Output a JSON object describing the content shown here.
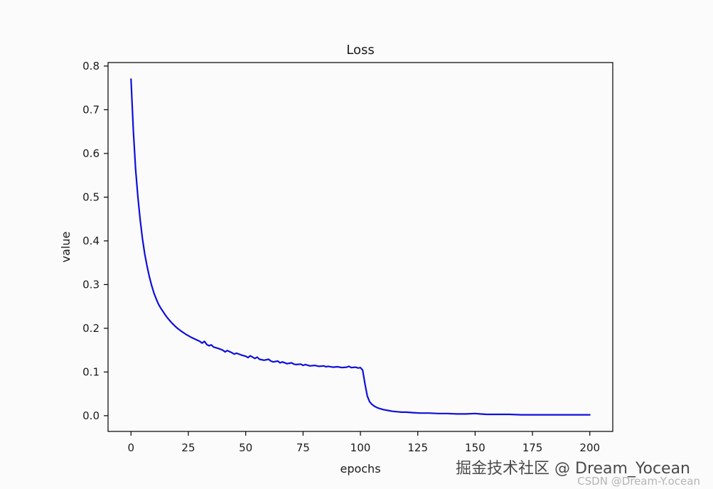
{
  "watermark": {
    "line1": "掘金技术社区 @ Dream_Yocean",
    "line2": "CSDN @Dream-Y.ocean"
  },
  "chart_data": {
    "type": "line",
    "title": "Loss",
    "xlabel": "epochs",
    "ylabel": "value",
    "xlim": [
      -10,
      210
    ],
    "ylim": [
      -0.036,
      0.808
    ],
    "xticks": [
      0,
      25,
      50,
      75,
      100,
      125,
      150,
      175,
      200
    ],
    "xtick_labels": [
      "0",
      "25",
      "50",
      "75",
      "100",
      "125",
      "150",
      "175",
      "200"
    ],
    "yticks": [
      0.0,
      0.1,
      0.2,
      0.3,
      0.4,
      0.5,
      0.6,
      0.7,
      0.8
    ],
    "ytick_labels": [
      "0.0",
      "0.1",
      "0.2",
      "0.3",
      "0.4",
      "0.5",
      "0.6",
      "0.7",
      "0.8"
    ],
    "grid": false,
    "legend": "none",
    "axis_color": "#000000",
    "background": "#fbfbfb",
    "series": [
      {
        "name": "loss",
        "color": "#0f0fdd",
        "points": [
          [
            0,
            0.77
          ],
          [
            1,
            0.655
          ],
          [
            2,
            0.565
          ],
          [
            3,
            0.5
          ],
          [
            4,
            0.448
          ],
          [
            5,
            0.405
          ],
          [
            6,
            0.37
          ],
          [
            7,
            0.342
          ],
          [
            8,
            0.318
          ],
          [
            9,
            0.298
          ],
          [
            10,
            0.281
          ],
          [
            11,
            0.267
          ],
          [
            12,
            0.255
          ],
          [
            13,
            0.246
          ],
          [
            14,
            0.238
          ],
          [
            15,
            0.23
          ],
          [
            16,
            0.223
          ],
          [
            17,
            0.217
          ],
          [
            18,
            0.211
          ],
          [
            19,
            0.206
          ],
          [
            20,
            0.201
          ],
          [
            22,
            0.193
          ],
          [
            24,
            0.186
          ],
          [
            25,
            0.183
          ],
          [
            26,
            0.18
          ],
          [
            28,
            0.175
          ],
          [
            30,
            0.17
          ],
          [
            31,
            0.166
          ],
          [
            32,
            0.17
          ],
          [
            33,
            0.163
          ],
          [
            34,
            0.16
          ],
          [
            35,
            0.162
          ],
          [
            36,
            0.157
          ],
          [
            38,
            0.154
          ],
          [
            40,
            0.15
          ],
          [
            41,
            0.146
          ],
          [
            42,
            0.149
          ],
          [
            44,
            0.144
          ],
          [
            45,
            0.141
          ],
          [
            46,
            0.143
          ],
          [
            48,
            0.139
          ],
          [
            50,
            0.136
          ],
          [
            51,
            0.133
          ],
          [
            52,
            0.137
          ],
          [
            54,
            0.131
          ],
          [
            55,
            0.134
          ],
          [
            56,
            0.129
          ],
          [
            58,
            0.127
          ],
          [
            60,
            0.129
          ],
          [
            61,
            0.125
          ],
          [
            62,
            0.123
          ],
          [
            64,
            0.125
          ],
          [
            65,
            0.121
          ],
          [
            66,
            0.123
          ],
          [
            68,
            0.119
          ],
          [
            70,
            0.121
          ],
          [
            71,
            0.118
          ],
          [
            72,
            0.117
          ],
          [
            74,
            0.118
          ],
          [
            75,
            0.115
          ],
          [
            76,
            0.117
          ],
          [
            78,
            0.114
          ],
          [
            80,
            0.115
          ],
          [
            82,
            0.113
          ],
          [
            84,
            0.114
          ],
          [
            85,
            0.112
          ],
          [
            86,
            0.113
          ],
          [
            88,
            0.111
          ],
          [
            90,
            0.112
          ],
          [
            92,
            0.11
          ],
          [
            94,
            0.111
          ],
          [
            95,
            0.113
          ],
          [
            96,
            0.11
          ],
          [
            98,
            0.111
          ],
          [
            99,
            0.109
          ],
          [
            100,
            0.11
          ],
          [
            101,
            0.104
          ],
          [
            102,
            0.072
          ],
          [
            103,
            0.045
          ],
          [
            104,
            0.032
          ],
          [
            105,
            0.026
          ],
          [
            106,
            0.022
          ],
          [
            107,
            0.019
          ],
          [
            108,
            0.017
          ],
          [
            110,
            0.014
          ],
          [
            112,
            0.012
          ],
          [
            114,
            0.01
          ],
          [
            116,
            0.009
          ],
          [
            118,
            0.008
          ],
          [
            120,
            0.008
          ],
          [
            123,
            0.007
          ],
          [
            126,
            0.006
          ],
          [
            130,
            0.006
          ],
          [
            134,
            0.005
          ],
          [
            138,
            0.005
          ],
          [
            142,
            0.004
          ],
          [
            146,
            0.004
          ],
          [
            150,
            0.005
          ],
          [
            152,
            0.004
          ],
          [
            155,
            0.003
          ],
          [
            160,
            0.003
          ],
          [
            165,
            0.003
          ],
          [
            170,
            0.002
          ],
          [
            175,
            0.002
          ],
          [
            180,
            0.002
          ],
          [
            185,
            0.002
          ],
          [
            190,
            0.002
          ],
          [
            195,
            0.002
          ],
          [
            200,
            0.002
          ]
        ]
      }
    ]
  }
}
